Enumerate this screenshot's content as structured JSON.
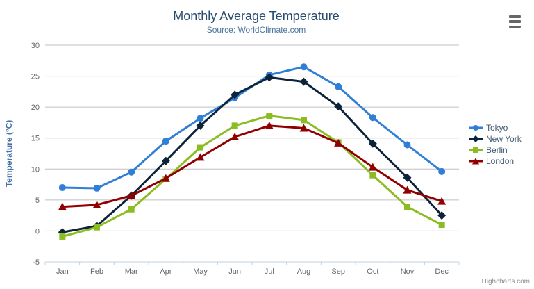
{
  "chart": {
    "title": "Monthly Average Temperature",
    "subtitle": "Source: WorldClimate.com",
    "credits": "Highcharts.com"
  },
  "chart_data": {
    "type": "line",
    "title": "Monthly Average Temperature",
    "subtitle": "Source: WorldClimate.com",
    "xlabel": "",
    "ylabel": "Temperature (°C)",
    "categories": [
      "Jan",
      "Feb",
      "Mar",
      "Apr",
      "May",
      "Jun",
      "Jul",
      "Aug",
      "Sep",
      "Oct",
      "Nov",
      "Dec"
    ],
    "ylim": [
      -5,
      30
    ],
    "ytick_step": 5,
    "yticks": [
      -5,
      0,
      5,
      10,
      15,
      20,
      25,
      30
    ],
    "grid": true,
    "legend_position": "right",
    "series": [
      {
        "name": "Tokyo",
        "marker": "circle",
        "color": "#2f7ed8",
        "values": [
          7.0,
          6.9,
          9.5,
          14.5,
          18.2,
          21.5,
          25.2,
          26.5,
          23.3,
          18.3,
          13.9,
          9.6
        ]
      },
      {
        "name": "New York",
        "marker": "diamond",
        "color": "#0d233a",
        "values": [
          -0.2,
          0.8,
          5.7,
          11.3,
          17.0,
          22.0,
          24.8,
          24.1,
          20.1,
          14.1,
          8.6,
          2.5
        ]
      },
      {
        "name": "Berlin",
        "marker": "square",
        "color": "#8bbc21",
        "values": [
          -0.9,
          0.6,
          3.5,
          8.4,
          13.5,
          17.0,
          18.6,
          17.9,
          14.3,
          9.0,
          3.9,
          1.0
        ]
      },
      {
        "name": "London",
        "marker": "triangle",
        "color": "#910000",
        "values": [
          3.9,
          4.2,
          5.7,
          8.5,
          11.9,
          15.2,
          17.0,
          16.6,
          14.2,
          10.3,
          6.6,
          4.8
        ]
      }
    ]
  },
  "colors": {
    "title": "#274b6d",
    "subtitle": "#4d759e",
    "grid_line": "#c0c0c0",
    "axis_line": "#c0d0e0",
    "tick_label": "#666666",
    "axis_title": "#4572a7",
    "legend_text": "#3e576f",
    "credits_text": "#909090",
    "menu_icon": "#666666"
  }
}
